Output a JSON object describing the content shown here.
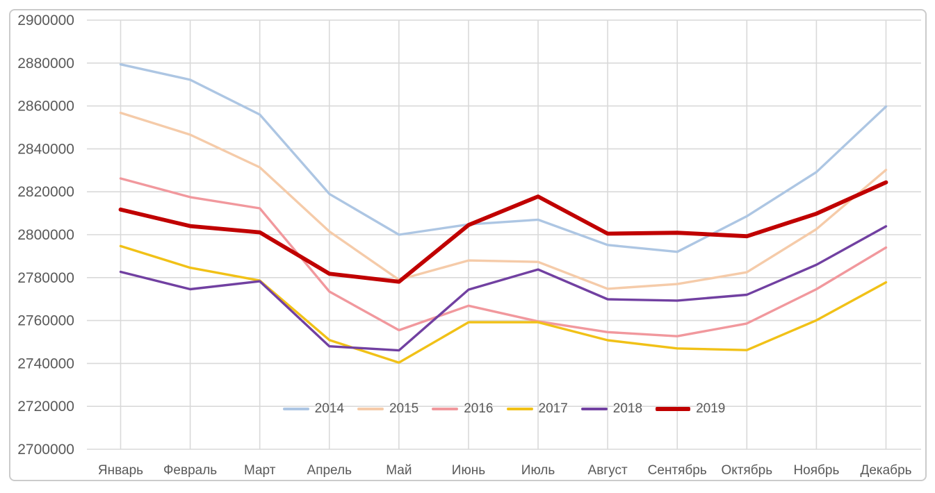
{
  "chart_data": {
    "type": "line",
    "title": "",
    "xlabel": "",
    "ylabel": "",
    "categories": [
      "Январь",
      "Февраль",
      "Март",
      "Апрель",
      "Май",
      "Июнь",
      "Июль",
      "Август",
      "Сентябрь",
      "Октябрь",
      "Ноябрь",
      "Декабрь"
    ],
    "series": [
      {
        "name": "2014",
        "color": "#adc6e3",
        "line_width": 3.4,
        "values": [
          2879400,
          2872200,
          2856000,
          2819000,
          2800000,
          2804800,
          2807000,
          2795200,
          2792000,
          2808600,
          2829200,
          2859700
        ]
      },
      {
        "name": "2015",
        "color": "#f5cba9",
        "line_width": 3.4,
        "values": [
          2856800,
          2846600,
          2831400,
          2801500,
          2779000,
          2788000,
          2787300,
          2774800,
          2777000,
          2782500,
          2802600,
          2830200
        ]
      },
      {
        "name": "2016",
        "color": "#f1989d",
        "line_width": 3.4,
        "values": [
          2826200,
          2817500,
          2812300,
          2773500,
          2755500,
          2766900,
          2759600,
          2754600,
          2752700,
          2758600,
          2774600,
          2794000
        ]
      },
      {
        "name": "2017",
        "color": "#f1c117",
        "line_width": 3.4,
        "values": [
          2794700,
          2784600,
          2778600,
          2750900,
          2740400,
          2759200,
          2759200,
          2750800,
          2747000,
          2746200,
          2760100,
          2777800
        ]
      },
      {
        "name": "2018",
        "color": "#7140a1",
        "line_width": 3.4,
        "values": [
          2782700,
          2774600,
          2778300,
          2748000,
          2746100,
          2774400,
          2783800,
          2769900,
          2769300,
          2772000,
          2786000,
          2803900
        ]
      },
      {
        "name": "2019",
        "color": "#c00000",
        "line_width": 5.8,
        "values": [
          2811700,
          2804000,
          2801100,
          2781800,
          2778100,
          2804500,
          2817800,
          2800500,
          2800900,
          2799300,
          2809800,
          2824400
        ]
      }
    ],
    "ylim": [
      2700000,
      2900000
    ],
    "ytick_step": 20000,
    "y_tick_labels": [
      "2900000",
      "2880000",
      "2860000",
      "2840000",
      "2820000",
      "2800000",
      "2780000",
      "2760000",
      "2740000",
      "2720000",
      "2700000"
    ],
    "grid": true,
    "legend_position": "inside-bottom-center",
    "legend_entries": [
      "2014",
      "2015",
      "2016",
      "2017",
      "2018",
      "2019"
    ]
  },
  "styles": {
    "background": "#ffffff",
    "grid_color": "#d9d9d9",
    "axis_text_color": "#595959",
    "frame_border_color": "#cbcbcb"
  }
}
